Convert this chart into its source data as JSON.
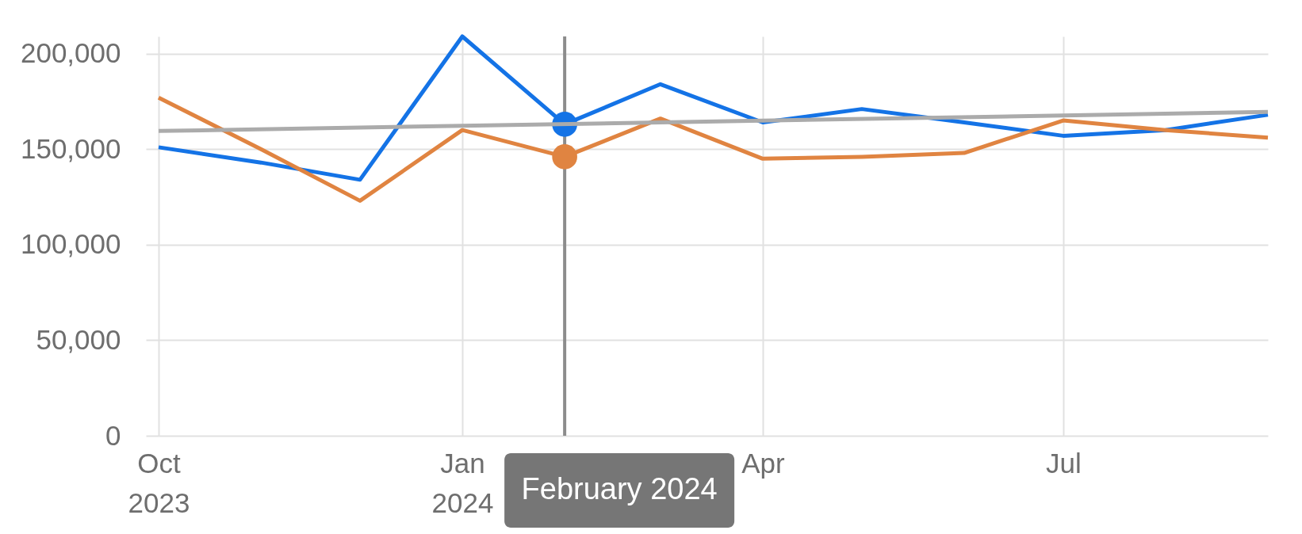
{
  "chart_data": {
    "type": "line",
    "x": [
      "2023-10",
      "2023-11",
      "2023-12",
      "2024-01",
      "2024-02",
      "2024-03",
      "2024-04",
      "2024-05",
      "2024-06",
      "2024-07",
      "2024-08",
      "2024-09"
    ],
    "series": [
      {
        "color": "#1473e6",
        "values": [
          151000,
          143000,
          134000,
          209000,
          163000,
          184000,
          164000,
          171000,
          164000,
          157000,
          160000,
          168000
        ]
      },
      {
        "color": "#e08441",
        "values": [
          177000,
          150000,
          123000,
          160000,
          146000,
          166000,
          145000,
          146000,
          148000,
          165000,
          160000,
          156000
        ]
      },
      {
        "type": "scatter",
        "x": [
          "2024-02"
        ],
        "color": "#1473e6",
        "values": [
          163000
        ]
      },
      {
        "type": "scatter",
        "x": [
          "2024-02"
        ],
        "color": "#e08441",
        "values": [
          146000
        ]
      },
      {
        "type": "line",
        "x": [
          "2023-10",
          "2024-09"
        ],
        "color": "#ababab",
        "values": [
          159500,
          169500
        ]
      }
    ],
    "xlim": [
      "2023-10",
      "2024-09"
    ],
    "xticks": [
      {
        "value": "2023-10",
        "label": "Oct 2023"
      },
      {
        "value": "2024-01",
        "label": "Jan 2024"
      },
      {
        "value": "2024-04",
        "label": "Apr"
      },
      {
        "value": "2024-07",
        "label": "Jul"
      }
    ],
    "ylim": [
      0,
      209000
    ],
    "yticks": [
      0,
      {
        "value": 50000,
        "label": "50,000"
      },
      {
        "value": 100000,
        "label": "100,000"
      },
      {
        "value": 150000,
        "label": "150,000"
      },
      {
        "value": 200000,
        "label": "200,000"
      }
    ],
    "grid": true,
    "line_style": "solid",
    "ref_lines": [
      {
        "axis": "x",
        "value": "2024-02",
        "label": "February 2024",
        "color": "#8c8c8c"
      }
    ]
  }
}
